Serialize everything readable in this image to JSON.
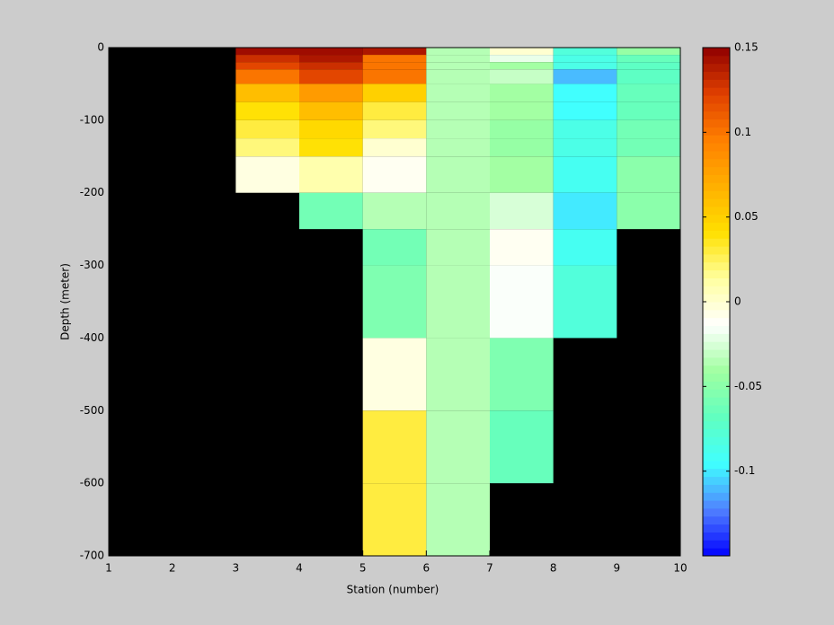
{
  "chart_data": {
    "type": "heatmap",
    "xlabel": "Station (number)",
    "ylabel": "Depth (meter)",
    "x": [
      1,
      2,
      3,
      4,
      5,
      6,
      7,
      8,
      9,
      10
    ],
    "y": [
      0,
      -10,
      -20,
      -30,
      -50,
      -75,
      -100,
      -125,
      -150,
      -200,
      -250,
      -300,
      -400,
      -500,
      -600,
      -700
    ],
    "z": [
      [
        null,
        null,
        0.145,
        0.145,
        0.14,
        -0.035,
        0.0,
        -0.08,
        -0.045
      ],
      [
        null,
        null,
        0.13,
        0.14,
        0.1,
        -0.035,
        -0.02,
        -0.085,
        -0.065
      ],
      [
        null,
        null,
        0.12,
        0.13,
        0.1,
        -0.035,
        -0.04,
        -0.085,
        -0.07
      ],
      [
        null,
        null,
        0.1,
        0.12,
        0.1,
        -0.035,
        -0.03,
        -0.11,
        -0.07
      ],
      [
        null,
        null,
        0.06,
        0.08,
        0.05,
        -0.035,
        -0.04,
        -0.095,
        -0.065
      ],
      [
        null,
        null,
        0.04,
        0.06,
        0.03,
        -0.035,
        -0.04,
        -0.095,
        -0.065
      ],
      [
        null,
        null,
        0.03,
        0.045,
        0.02,
        -0.035,
        -0.045,
        -0.085,
        -0.06
      ],
      [
        null,
        null,
        0.02,
        0.04,
        0.0,
        -0.035,
        -0.045,
        -0.085,
        -0.06
      ],
      [
        null,
        null,
        -0.005,
        0.01,
        -0.01,
        -0.035,
        -0.04,
        -0.09,
        -0.05
      ],
      [
        null,
        null,
        null,
        -0.06,
        -0.035,
        -0.035,
        -0.025,
        -0.1,
        -0.05
      ],
      [
        null,
        null,
        null,
        null,
        -0.06,
        -0.035,
        -0.01,
        -0.09,
        null
      ],
      [
        null,
        null,
        null,
        null,
        -0.055,
        -0.035,
        -0.015,
        -0.08,
        null
      ],
      [
        null,
        null,
        null,
        null,
        -0.005,
        -0.035,
        -0.055,
        null,
        null
      ],
      [
        null,
        null,
        null,
        null,
        0.03,
        -0.035,
        -0.065,
        null,
        null
      ],
      [
        null,
        null,
        null,
        null,
        0.03,
        -0.035,
        null,
        null,
        null
      ]
    ],
    "xlim": [
      1,
      10
    ],
    "xticks": [
      1,
      2,
      3,
      4,
      5,
      6,
      7,
      8,
      9,
      10
    ],
    "ylim": [
      -700,
      0
    ],
    "yticks": [
      0,
      -100,
      -200,
      -300,
      -400,
      -500,
      -600,
      -700
    ],
    "clim": [
      -0.15,
      0.15
    ],
    "cticks": [
      0.15,
      0.1,
      0.05,
      0,
      -0.05,
      -0.1
    ],
    "missing_color": "#000000",
    "colormap": [
      "#0000ff",
      "#5080ff",
      "#40ffff",
      "#60ffc0",
      "#a0ffa0",
      "#ffffff",
      "#ffffa0",
      "#ffe000",
      "#ffb000",
      "#ff8000",
      "#e04000",
      "#900000"
    ]
  }
}
